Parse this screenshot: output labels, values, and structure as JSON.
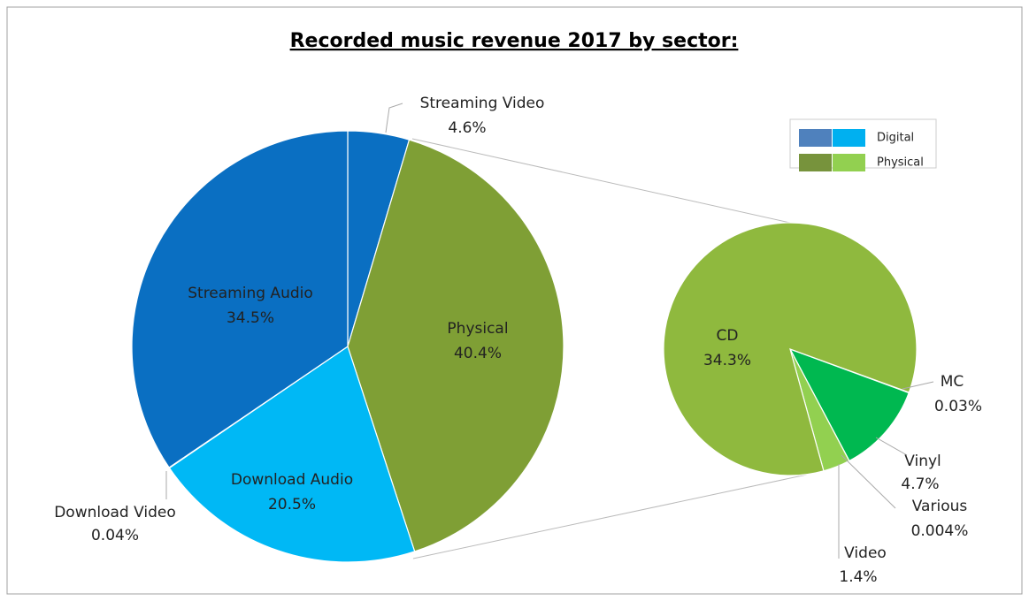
{
  "chart_data": [
    {
      "type": "pie",
      "title": "Recorded music revenue 2017 by sector:",
      "labels": [
        "Streaming Video",
        "Physical",
        "Download Audio",
        "Download Video",
        "Streaming Audio"
      ],
      "values": [
        4.6,
        40.4,
        20.5,
        0.04,
        34.5
      ],
      "value_labels": [
        "4.6%",
        "40.4%",
        "20.5%",
        "0.04%",
        "34.5%"
      ],
      "colors": [
        "#0a6fc2",
        "#7f9f35",
        "#00b8f5",
        "#00b8f5",
        "#0a6fc2"
      ],
      "legend": [
        {
          "name": "Digital",
          "colors": [
            "#4f81bd",
            "#00b0f0"
          ]
        },
        {
          "name": "Physical",
          "colors": [
            "#77933c",
            "#92d050"
          ]
        }
      ]
    },
    {
      "type": "pie",
      "labels": [
        "MC",
        "Vinyl",
        "Various",
        "Video",
        "CD"
      ],
      "values": [
        0.03,
        4.7,
        0.004,
        1.4,
        34.3
      ],
      "value_labels": [
        "0.03%",
        "4.7%",
        "0.004%",
        "1.4%",
        "34.3%"
      ],
      "colors": [
        "#00b050",
        "#00b850",
        "#92d050",
        "#92d050",
        "#8fb93e"
      ]
    }
  ]
}
